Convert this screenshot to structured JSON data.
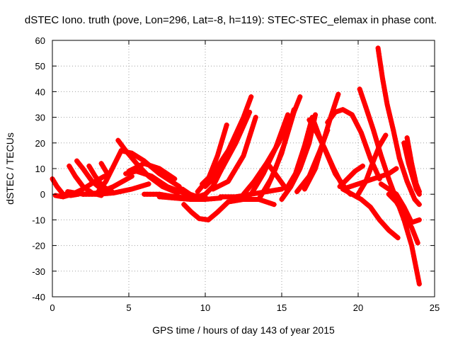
{
  "chart_data": {
    "type": "scatter",
    "title": "dSTEC Iono. truth (pove, Lon=296, Lat=-8, h=119): STEC-STEC_elemax in phase cont.",
    "xlabel": "GPS time / hours of day 143 of year 2015",
    "ylabel": "dSTEC  / TECUs",
    "xlim": [
      0,
      25
    ],
    "ylim": [
      -40,
      60
    ],
    "xticks": [
      0,
      5,
      10,
      15,
      20,
      25
    ],
    "yticks": [
      -40,
      -30,
      -20,
      -10,
      0,
      10,
      20,
      30,
      40,
      50,
      60
    ],
    "grid": true,
    "color": "#ff0000",
    "marker": "plus",
    "series": [
      {
        "x": [
          0.0,
          0.3,
          0.7,
          1.2,
          1.7
        ],
        "y": [
          6,
          3,
          0,
          -0.5,
          0
        ]
      },
      {
        "x": [
          0.2,
          0.7,
          1.3,
          2.0,
          2.8,
          3.4
        ],
        "y": [
          -0.5,
          -1,
          0,
          2,
          5,
          7
        ]
      },
      {
        "x": [
          1.1,
          1.5,
          2.0,
          2.6,
          3.2
        ],
        "y": [
          11,
          7,
          3,
          0.5,
          -0.5
        ]
      },
      {
        "x": [
          1.6,
          2.0,
          2.6,
          3.2,
          3.8
        ],
        "y": [
          13,
          10,
          5,
          2,
          1
        ]
      },
      {
        "x": [
          2.4,
          2.8,
          3.3,
          3.9
        ],
        "y": [
          11,
          7,
          3,
          1
        ]
      },
      {
        "x": [
          1.0,
          2.0,
          3.0,
          4.0,
          5.2
        ],
        "y": [
          1,
          0,
          0.5,
          3,
          7
        ]
      },
      {
        "x": [
          3.0,
          3.5,
          4.0,
          4.5
        ],
        "y": [
          1,
          5,
          11,
          17
        ]
      },
      {
        "x": [
          3.2,
          3.6
        ],
        "y": [
          12,
          8
        ]
      },
      {
        "x": [
          2.0,
          3.0,
          4.0,
          5.2,
          6.3
        ],
        "y": [
          0,
          0,
          0.5,
          2,
          4
        ]
      },
      {
        "x": [
          4.3,
          4.8,
          5.5,
          6.3,
          7.2,
          8.2
        ],
        "y": [
          21,
          17,
          12,
          7,
          3,
          0.5
        ]
      },
      {
        "x": [
          4.5,
          5.2,
          6.0,
          7.0,
          8.3
        ],
        "y": [
          17,
          16,
          13,
          8,
          3
        ]
      },
      {
        "x": [
          4.8,
          5.5,
          6.5,
          7.5,
          8.8
        ],
        "y": [
          8,
          9,
          7,
          3,
          0
        ]
      },
      {
        "x": [
          5.0,
          6.0,
          7.0,
          8.0
        ],
        "y": [
          9,
          12,
          10,
          6
        ]
      },
      {
        "x": [
          6.0,
          7.0,
          8.0,
          9.0,
          10.0
        ],
        "y": [
          0,
          0,
          -1,
          -1.5,
          -1
        ]
      },
      {
        "x": [
          7.0,
          8.0,
          9.0,
          10.0,
          11.0
        ],
        "y": [
          -1,
          -1.5,
          -2,
          -2,
          -1.5
        ]
      },
      {
        "x": [
          8.6,
          9.1,
          9.6,
          10.2,
          10.8,
          11.5
        ],
        "y": [
          -4,
          -7,
          -9.5,
          -10,
          -7,
          -3
        ]
      },
      {
        "x": [
          8.5,
          9.0,
          9.5,
          10.0,
          10.5,
          11.0,
          11.5
        ],
        "y": [
          2,
          0,
          -1,
          0,
          3,
          9,
          17
        ]
      },
      {
        "x": [
          9.5,
          10.2,
          10.8,
          11.4
        ],
        "y": [
          1,
          6,
          15,
          27
        ]
      },
      {
        "x": [
          9.8,
          10.5,
          11.5,
          12.5,
          13.0
        ],
        "y": [
          4,
          8,
          17,
          30,
          38
        ]
      },
      {
        "x": [
          10.0,
          11.0,
          12.0,
          12.9
        ],
        "y": [
          3,
          9,
          20,
          32
        ]
      },
      {
        "x": [
          10.5,
          11.5,
          12.5,
          13.3
        ],
        "y": [
          2,
          5,
          15,
          30
        ]
      },
      {
        "x": [
          11.5,
          12.5,
          13.5,
          14.5
        ],
        "y": [
          -3,
          -2,
          -2,
          -4
        ]
      },
      {
        "x": [
          11.0,
          12.0,
          13.0,
          14.0,
          15.0
        ],
        "y": [
          -1,
          -1,
          0,
          1,
          2
        ]
      },
      {
        "x": [
          12.5,
          13.2,
          14.0,
          14.8,
          15.6
        ],
        "y": [
          0,
          5,
          12,
          20,
          30
        ]
      },
      {
        "x": [
          13.0,
          13.8,
          14.6,
          15.4
        ],
        "y": [
          0,
          8,
          18,
          31
        ]
      },
      {
        "x": [
          13.5,
          14.3,
          15.0,
          15.8
        ],
        "y": [
          -2,
          6,
          16,
          33
        ]
      },
      {
        "x": [
          14.0,
          14.6,
          15.2,
          15.8,
          16.2
        ],
        "y": [
          2,
          10,
          20,
          32,
          38
        ]
      },
      {
        "x": [
          14.2,
          14.7,
          15.3
        ],
        "y": [
          11,
          7,
          2
        ]
      },
      {
        "x": [
          15.0,
          15.6,
          16.2,
          16.8,
          17.2
        ],
        "y": [
          -2,
          3,
          10,
          20,
          31
        ]
      },
      {
        "x": [
          15.3,
          15.9,
          16.5,
          17.0
        ],
        "y": [
          2,
          8,
          19,
          30
        ]
      },
      {
        "x": [
          16.8,
          17.3,
          17.8,
          18.4,
          19.0,
          19.5
        ],
        "y": [
          29,
          24,
          18,
          10,
          3,
          0
        ]
      },
      {
        "x": [
          17.0,
          17.5,
          18.0,
          18.5,
          19.2
        ],
        "y": [
          30,
          22,
          15,
          8,
          2
        ]
      },
      {
        "x": [
          16.5,
          17.2,
          17.8,
          18.2,
          18.7
        ],
        "y": [
          2,
          10,
          22,
          30,
          39
        ]
      },
      {
        "x": [
          16.0,
          16.8,
          17.5,
          18.0
        ],
        "y": [
          1,
          7,
          17,
          25
        ]
      },
      {
        "x": [
          18.0,
          18.5,
          19.0,
          19.6,
          20.2,
          20.8,
          21.4
        ],
        "y": [
          28,
          32,
          33,
          31,
          24,
          14,
          6
        ]
      },
      {
        "x": [
          18.8,
          19.3,
          19.8,
          20.3
        ],
        "y": [
          3,
          6,
          9,
          11
        ]
      },
      {
        "x": [
          19.0,
          19.6,
          20.2,
          20.8,
          21.4,
          22.0,
          22.6
        ],
        "y": [
          2,
          0,
          -2,
          -5,
          -10,
          -14,
          -17
        ]
      },
      {
        "x": [
          19.0,
          20.0,
          21.0,
          22.0,
          22.5
        ],
        "y": [
          2,
          4,
          6,
          8,
          10
        ]
      },
      {
        "x": [
          20.0,
          20.5,
          21.0,
          21.4,
          21.8
        ],
        "y": [
          0,
          5,
          13,
          19,
          23
        ]
      },
      {
        "x": [
          20.1,
          20.5,
          21.0,
          21.5,
          22.0,
          22.5,
          23.0,
          23.5,
          24.0
        ],
        "y": [
          41,
          34,
          25,
          15,
          6,
          -2,
          -10,
          -20,
          -35
        ]
      },
      {
        "x": [
          21.3,
          21.6,
          21.9,
          22.3,
          22.7,
          23.2,
          23.7,
          24.0
        ],
        "y": [
          57,
          45,
          35,
          25,
          14,
          5,
          -2,
          -4
        ]
      },
      {
        "x": [
          22.0,
          22.5,
          23.0,
          23.5,
          23.9
        ],
        "y": [
          0,
          -3,
          -8,
          -13,
          -19
        ]
      },
      {
        "x": [
          23.0,
          23.3,
          23.6,
          23.8,
          24.0
        ],
        "y": [
          20,
          12,
          6,
          2,
          0
        ]
      },
      {
        "x": [
          23.2,
          23.5,
          23.8,
          24.0
        ],
        "y": [
          22,
          12,
          4,
          1
        ]
      },
      {
        "x": [
          21.5,
          22.0,
          22.5,
          23.0,
          23.5,
          24.0
        ],
        "y": [
          4,
          2,
          0,
          -5,
          -11,
          -10
        ]
      }
    ]
  }
}
